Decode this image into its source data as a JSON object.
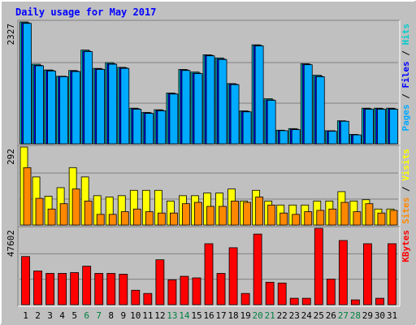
{
  "chart_data": {
    "type": "bar",
    "title": "Daily usage for May 2017",
    "categories": [
      "1",
      "2",
      "3",
      "4",
      "5",
      "6",
      "7",
      "8",
      "9",
      "10",
      "11",
      "12",
      "13",
      "14",
      "15",
      "16",
      "17",
      "18",
      "19",
      "20",
      "21",
      "22",
      "23",
      "24",
      "25",
      "26",
      "27",
      "28",
      "29",
      "30",
      "31"
    ],
    "weekend_days": [
      6,
      7,
      13,
      14,
      20,
      21,
      27,
      28
    ],
    "colors": {
      "title": "#0000ff",
      "hits": "#00cccc",
      "files": "#0000ff",
      "pages": "#00aaff",
      "visits": "#ffff00",
      "sites": "#ff8800",
      "kbytes": "#ff0000",
      "weekend_label": "#008040",
      "weekday_label": "#000000",
      "background": "#c0c0c0"
    },
    "panels": [
      {
        "id": "hits",
        "max_label": "2327",
        "ylim": [
          0,
          2327
        ],
        "side_labels": [
          {
            "text": "Pages",
            "color": "#00aaff"
          },
          {
            "text": " / ",
            "color": "#000000"
          },
          {
            "text": "Files",
            "color": "#0000ff"
          },
          {
            "text": " / ",
            "color": "#000000"
          },
          {
            "text": "Hits",
            "color": "#00cccc"
          }
        ],
        "series": [
          {
            "name": "Hits",
            "color": "#00cccc",
            "values": [
              2327,
              1520,
              1410,
              1290,
              1400,
              1790,
              1440,
              1550,
              1460,
              680,
              600,
              650,
              970,
              1420,
              1370,
              1700,
              1640,
              1150,
              630,
              1890,
              860,
              260,
              290,
              1530,
              1310,
              250,
              440,
              180,
              680,
              680,
              680
            ]
          },
          {
            "name": "Files",
            "color": "#0000ff",
            "values": [
              2310,
              1500,
              1400,
              1290,
              1390,
              1770,
              1430,
              1530,
              1450,
              670,
              590,
              640,
              960,
              1410,
              1350,
              1690,
              1620,
              1140,
              620,
              1880,
              840,
              250,
              280,
              1520,
              1290,
              250,
              430,
              170,
              670,
              670,
              670
            ]
          },
          {
            "name": "Pages",
            "color": "#00aaff",
            "values": [
              2300,
              1490,
              1390,
              1280,
              1380,
              1760,
              1420,
              1520,
              1440,
              660,
              580,
              630,
              950,
              1400,
              1340,
              1680,
              1610,
              1130,
              610,
              1870,
              830,
              250,
              270,
              1510,
              1280,
              240,
              430,
              170,
              660,
              660,
              660
            ]
          }
        ]
      },
      {
        "id": "visits",
        "max_label": "292",
        "ylim": [
          0,
          292
        ],
        "side_labels": [
          {
            "text": "Sites",
            "color": "#ff8800"
          },
          {
            "text": " / ",
            "color": "#000000"
          },
          {
            "text": "Visits",
            "color": "#ffff00"
          }
        ],
        "series": [
          {
            "name": "Visits",
            "color": "#ffff00",
            "values": [
              292,
              180,
              108,
              140,
              215,
              180,
              110,
              105,
              110,
              130,
              130,
              130,
              90,
              110,
              110,
              120,
              120,
              135,
              90,
              130,
              90,
              75,
              75,
              75,
              90,
              90,
              125,
              90,
              95,
              60,
              60
            ]
          },
          {
            "name": "Sites",
            "color": "#ff8800",
            "values": [
              215,
              100,
              60,
              80,
              135,
              90,
              40,
              40,
              50,
              60,
              50,
              45,
              45,
              80,
              85,
              70,
              70,
              90,
              85,
              105,
              75,
              45,
              40,
              50,
              55,
              60,
              85,
              50,
              80,
              45,
              55
            ]
          }
        ]
      },
      {
        "id": "kbytes",
        "max_label": "47602",
        "ylim": [
          0,
          47602
        ],
        "side_labels": [
          {
            "text": "KBytes",
            "color": "#ff0000"
          }
        ],
        "series": [
          {
            "name": "KBytes",
            "color": "#ff0000",
            "values": [
              30000,
              21000,
              19500,
              19500,
              20000,
              24000,
              19500,
              19500,
              19000,
              9000,
              7000,
              28000,
              15500,
              17700,
              16700,
              38000,
              19500,
              35500,
              7000,
              44000,
              14000,
              13500,
              4000,
              4000,
              47602,
              16000,
              40000,
              3000,
              38000,
              4000,
              38000
            ]
          }
        ]
      }
    ]
  }
}
